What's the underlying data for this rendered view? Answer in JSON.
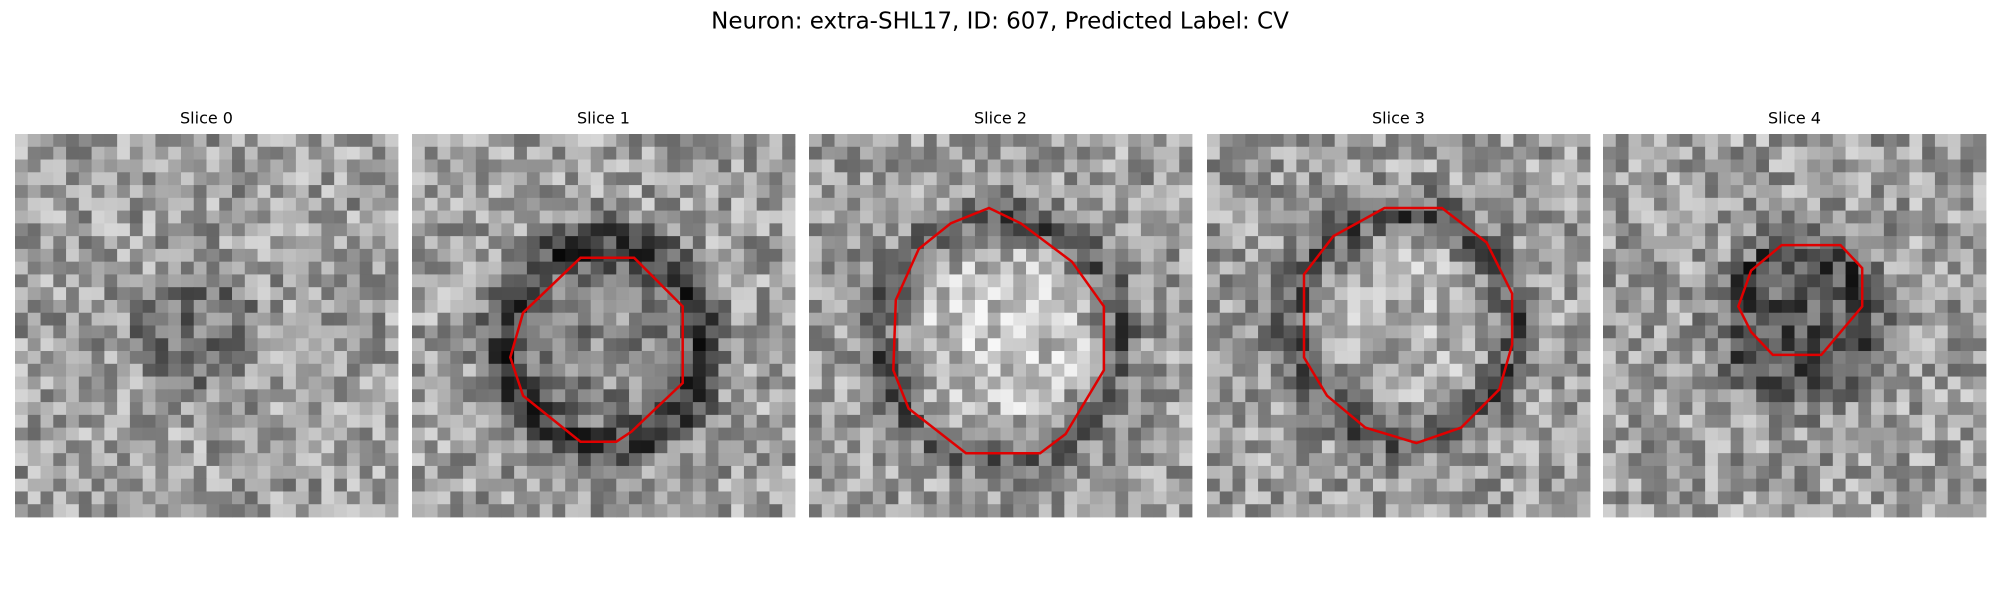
{
  "title": "Neuron: extra-SHL17, ID: 607, Predicted Label: CV",
  "panels": [
    {
      "title": "Slice 0"
    },
    {
      "title": "Slice 1"
    },
    {
      "title": "Slice 2"
    },
    {
      "title": "Slice 3"
    },
    {
      "title": "Slice 4"
    }
  ]
}
